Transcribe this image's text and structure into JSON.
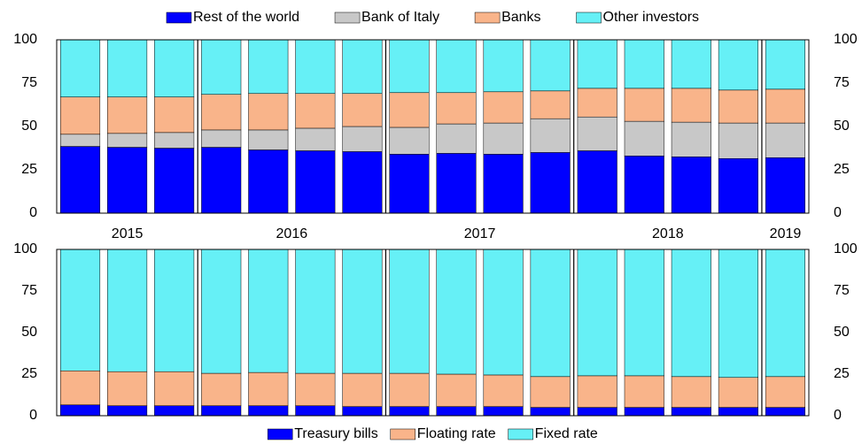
{
  "chart_data": [
    {
      "type": "stacked-bar",
      "categories": [
        "2015",
        "2015",
        "2015",
        "2016",
        "2016",
        "2016",
        "2016",
        "2017",
        "2017",
        "2017",
        "2017",
        "2018",
        "2018",
        "2018",
        "2018",
        "2019"
      ],
      "ylim": [
        0,
        100
      ],
      "yticks": [
        0,
        25,
        50,
        75,
        100
      ],
      "series": [
        {
          "name": "Rest of the world",
          "color": "#0000ff",
          "values": [
            38.5,
            38,
            37.5,
            38,
            36.5,
            36,
            35.5,
            34,
            34.5,
            34,
            35,
            36,
            33,
            32.5,
            31.5,
            32
          ]
        },
        {
          "name": "Bank of Italy",
          "color": "#c8c8c8",
          "values": [
            7,
            8,
            9,
            10,
            11.5,
            13,
            14.5,
            15.5,
            17,
            18,
            19.5,
            19.5,
            20,
            20,
            20.5,
            20
          ]
        },
        {
          "name": "Banks",
          "color": "#f9b48a",
          "values": [
            21.5,
            21,
            20.5,
            20.5,
            21,
            20,
            19,
            20,
            18,
            18,
            16,
            16.5,
            19,
            19.5,
            19,
            19.5
          ]
        },
        {
          "name": "Other investors",
          "color": "#66f0f6",
          "values": [
            33,
            33,
            33,
            31.5,
            31,
            31,
            31,
            30.5,
            30.5,
            30,
            29.5,
            28,
            28,
            28,
            29,
            28.5
          ]
        }
      ]
    },
    {
      "type": "stacked-bar",
      "ylim": [
        0,
        100
      ],
      "yticks": [
        0,
        25,
        50,
        75,
        100
      ],
      "series": [
        {
          "name": "Treasury bills",
          "color": "#0000ff",
          "values": [
            6.5,
            6,
            6,
            6,
            6,
            6,
            5.5,
            5.5,
            5.5,
            5.5,
            5,
            5,
            5,
            5,
            5,
            5
          ]
        },
        {
          "name": "Floating rate",
          "color": "#f9b48a",
          "values": [
            20.5,
            20.5,
            20.5,
            19.5,
            20,
            19.5,
            20,
            20,
            19.5,
            19,
            18.5,
            19,
            19,
            18.5,
            18,
            18.5
          ]
        },
        {
          "name": "Fixed rate",
          "color": "#66f0f6",
          "values": [
            73,
            73.5,
            73.5,
            74.5,
            74,
            74.5,
            74.5,
            74.5,
            75,
            75.5,
            76.5,
            76,
            76,
            76.5,
            77,
            76.5
          ]
        }
      ]
    }
  ]
}
